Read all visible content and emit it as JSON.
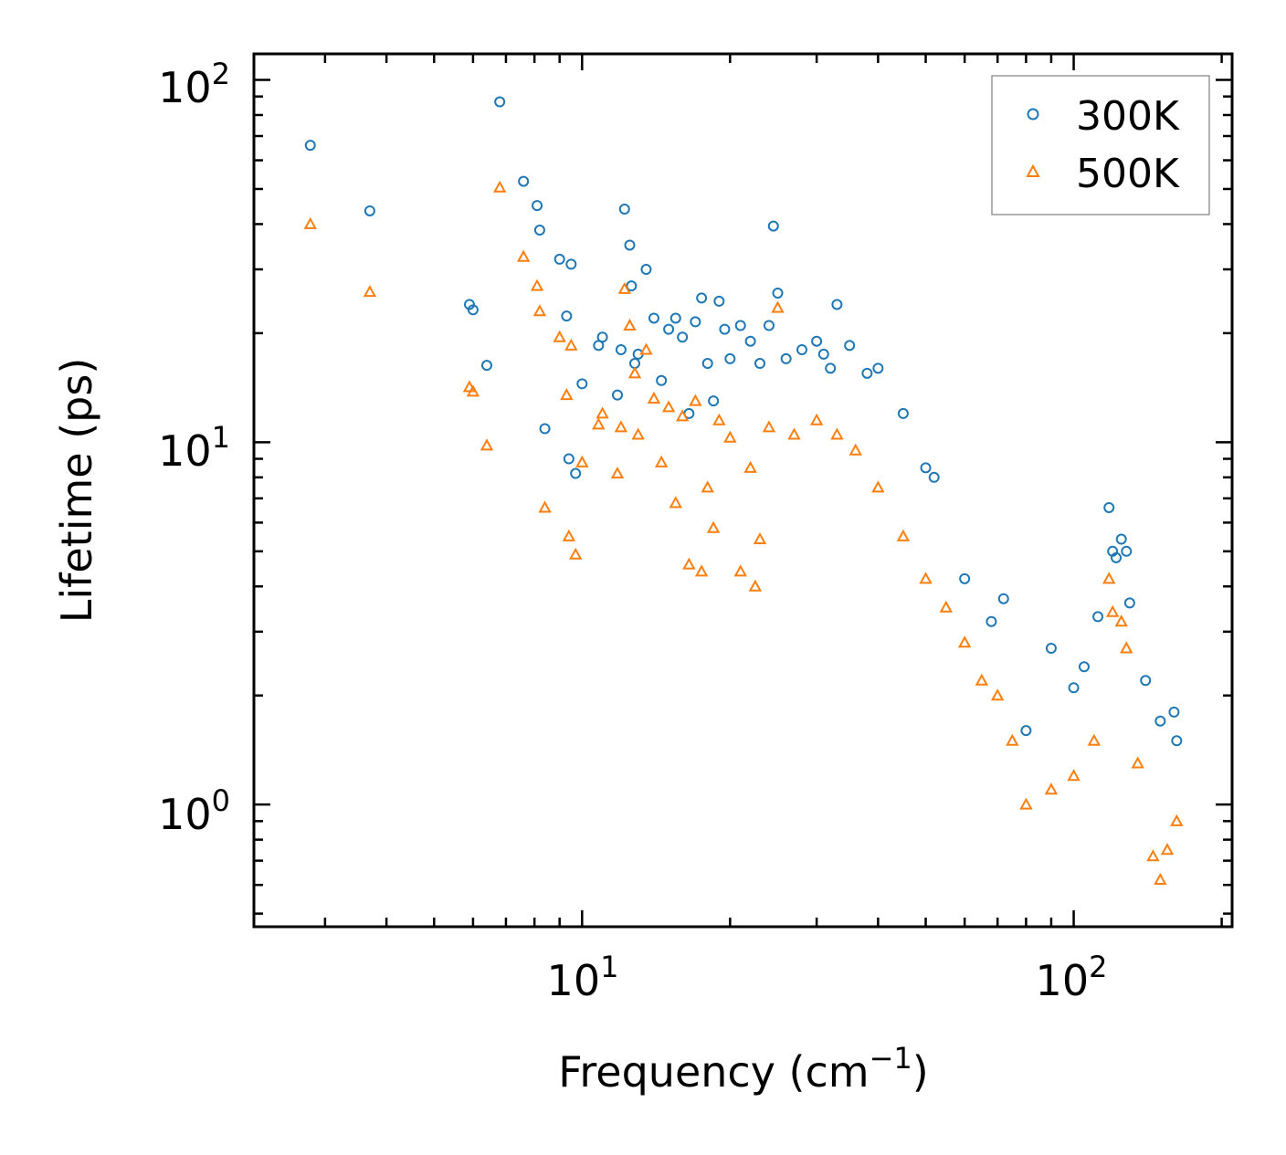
{
  "chart_data": {
    "type": "scatter",
    "xscale": "log",
    "yscale": "log",
    "xlabel": "Frequency (cm",
    "xlabel_sup": "−1",
    "xlabel_close": ")",
    "ylabel": "Lifetime (ps)",
    "xlim": [
      2.15,
      210
    ],
    "ylim": [
      0.46,
      118
    ],
    "x_major_ticks": [
      {
        "value": 10,
        "base": "10",
        "exp": "1"
      },
      {
        "value": 100,
        "base": "10",
        "exp": "2"
      }
    ],
    "y_major_ticks": [
      {
        "value": 1,
        "base": "10",
        "exp": "0"
      },
      {
        "value": 10,
        "base": "10",
        "exp": "1"
      },
      {
        "value": 100,
        "base": "10",
        "exp": "2"
      }
    ],
    "legend_position": "top-right",
    "colors": {
      "300K": "#1f77b4",
      "500K": "#ff7f0e"
    },
    "series": [
      {
        "name": "300K",
        "marker": "circle",
        "points": [
          [
            2.8,
            66
          ],
          [
            3.7,
            43.5
          ],
          [
            5.9,
            24
          ],
          [
            6.0,
            23.2
          ],
          [
            6.4,
            16.3
          ],
          [
            6.8,
            87
          ],
          [
            7.6,
            52.5
          ],
          [
            8.1,
            45
          ],
          [
            8.2,
            38.5
          ],
          [
            8.4,
            10.9
          ],
          [
            9.0,
            32
          ],
          [
            9.3,
            22.3
          ],
          [
            9.4,
            9.0
          ],
          [
            9.5,
            31
          ],
          [
            9.7,
            8.2
          ],
          [
            10.0,
            14.5
          ],
          [
            10.8,
            18.5
          ],
          [
            11.0,
            19.5
          ],
          [
            11.8,
            13.5
          ],
          [
            12.0,
            18.0
          ],
          [
            12.2,
            44
          ],
          [
            12.5,
            35
          ],
          [
            12.6,
            27
          ],
          [
            12.8,
            16.5
          ],
          [
            13.0,
            17.5
          ],
          [
            13.5,
            30
          ],
          [
            14.0,
            22
          ],
          [
            14.5,
            14.8
          ],
          [
            15.0,
            20.5
          ],
          [
            15.5,
            22
          ],
          [
            16.0,
            19.5
          ],
          [
            16.5,
            12
          ],
          [
            17.0,
            21.5
          ],
          [
            17.5,
            25
          ],
          [
            18.0,
            16.5
          ],
          [
            18.5,
            13
          ],
          [
            19.0,
            24.5
          ],
          [
            19.5,
            20.5
          ],
          [
            20.0,
            17
          ],
          [
            21.0,
            21
          ],
          [
            22.0,
            19
          ],
          [
            23.0,
            16.5
          ],
          [
            24.0,
            21
          ],
          [
            24.5,
            39.5
          ],
          [
            25.0,
            25.8
          ],
          [
            26.0,
            17
          ],
          [
            28.0,
            18
          ],
          [
            30.0,
            19
          ],
          [
            31.0,
            17.5
          ],
          [
            32.0,
            16
          ],
          [
            33.0,
            24
          ],
          [
            35.0,
            18.5
          ],
          [
            38.0,
            15.5
          ],
          [
            40.0,
            16
          ],
          [
            45.0,
            12
          ],
          [
            50.0,
            8.5
          ],
          [
            52.0,
            8
          ],
          [
            60.0,
            4.2
          ],
          [
            68.0,
            3.2
          ],
          [
            72.0,
            3.7
          ],
          [
            80.0,
            1.6
          ],
          [
            90.0,
            2.7
          ],
          [
            100.0,
            2.1
          ],
          [
            105.0,
            2.4
          ],
          [
            112.0,
            3.3
          ],
          [
            118.0,
            6.6
          ],
          [
            120.0,
            5.0
          ],
          [
            122.0,
            4.8
          ],
          [
            125.0,
            5.4
          ],
          [
            128.0,
            5.0
          ],
          [
            130.0,
            3.6
          ],
          [
            140.0,
            2.2
          ],
          [
            150.0,
            1.7
          ],
          [
            160.0,
            1.8
          ],
          [
            162.0,
            1.5
          ]
        ]
      },
      {
        "name": "500K",
        "marker": "triangle",
        "points": [
          [
            2.8,
            40
          ],
          [
            3.7,
            26
          ],
          [
            5.9,
            14.2
          ],
          [
            6.0,
            13.8
          ],
          [
            6.4,
            9.8
          ],
          [
            6.8,
            50.5
          ],
          [
            7.6,
            32.5
          ],
          [
            8.1,
            27
          ],
          [
            8.2,
            23
          ],
          [
            8.4,
            6.6
          ],
          [
            9.0,
            19.5
          ],
          [
            9.3,
            13.5
          ],
          [
            9.4,
            5.5
          ],
          [
            9.5,
            18.5
          ],
          [
            9.7,
            4.9
          ],
          [
            10.0,
            8.8
          ],
          [
            10.8,
            11.2
          ],
          [
            11.0,
            12
          ],
          [
            11.8,
            8.2
          ],
          [
            12.0,
            11
          ],
          [
            12.2,
            26.5
          ],
          [
            12.5,
            21
          ],
          [
            12.8,
            15.5
          ],
          [
            13.0,
            10.5
          ],
          [
            13.5,
            18
          ],
          [
            14.0,
            13.2
          ],
          [
            14.5,
            8.8
          ],
          [
            15.0,
            12.5
          ],
          [
            15.5,
            6.8
          ],
          [
            16.0,
            11.8
          ],
          [
            16.5,
            4.6
          ],
          [
            17.0,
            13
          ],
          [
            17.5,
            4.4
          ],
          [
            18.0,
            7.5
          ],
          [
            18.5,
            5.8
          ],
          [
            19.0,
            11.5
          ],
          [
            20.0,
            10.3
          ],
          [
            21.0,
            4.4
          ],
          [
            22.0,
            8.5
          ],
          [
            22.5,
            4.0
          ],
          [
            23.0,
            5.4
          ],
          [
            24.0,
            11
          ],
          [
            25.0,
            23.5
          ],
          [
            27.0,
            10.5
          ],
          [
            30.0,
            11.5
          ],
          [
            33.0,
            10.5
          ],
          [
            36.0,
            9.5
          ],
          [
            40.0,
            7.5
          ],
          [
            45.0,
            5.5
          ],
          [
            50.0,
            4.2
          ],
          [
            55.0,
            3.5
          ],
          [
            60.0,
            2.8
          ],
          [
            65.0,
            2.2
          ],
          [
            70.0,
            2.0
          ],
          [
            75.0,
            1.5
          ],
          [
            80.0,
            1.0
          ],
          [
            90.0,
            1.1
          ],
          [
            100.0,
            1.2
          ],
          [
            110.0,
            1.5
          ],
          [
            118.0,
            4.2
          ],
          [
            120.0,
            3.4
          ],
          [
            125.0,
            3.2
          ],
          [
            128.0,
            2.7
          ],
          [
            135.0,
            1.3
          ],
          [
            145.0,
            0.72
          ],
          [
            150.0,
            0.62
          ],
          [
            155.0,
            0.75
          ],
          [
            162.0,
            0.9
          ]
        ]
      }
    ]
  }
}
